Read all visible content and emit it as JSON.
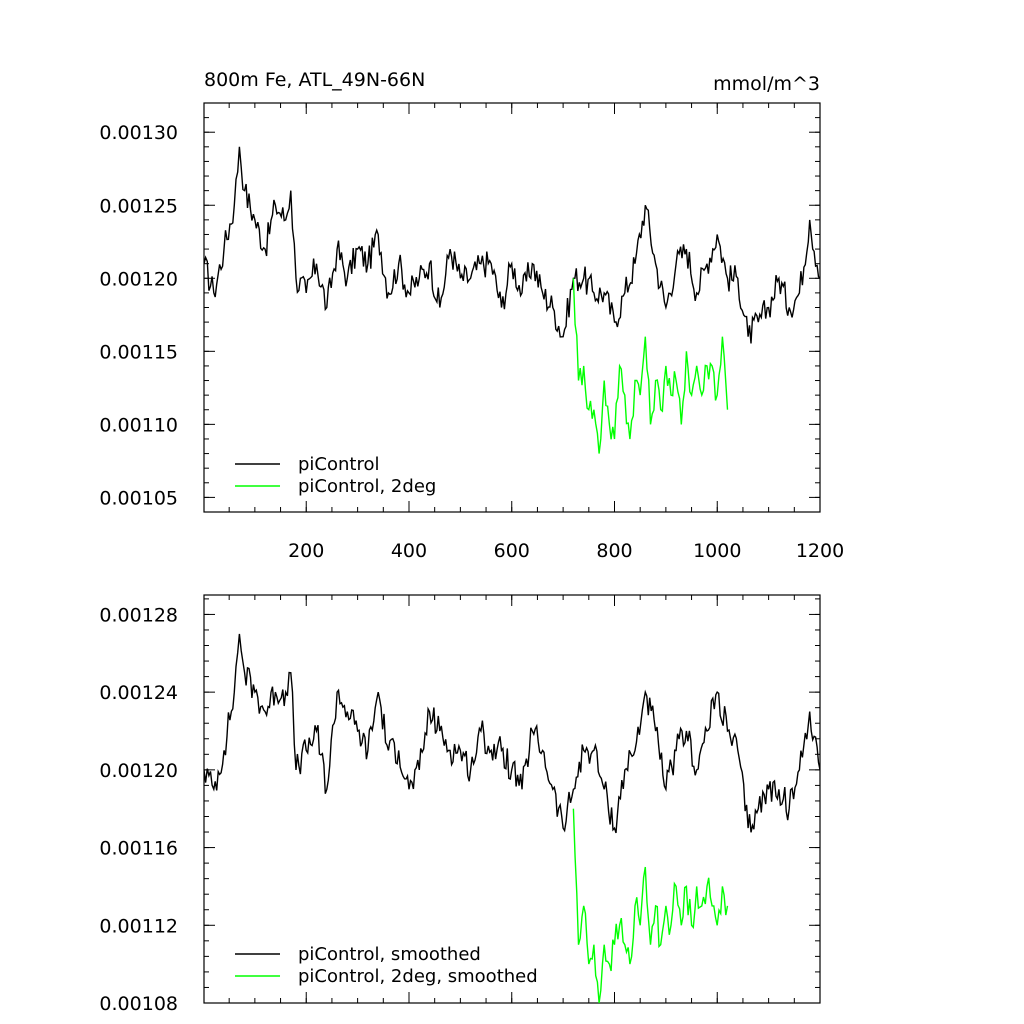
{
  "chart_data": [
    {
      "type": "line",
      "title": "800m Fe, ATL_49N-66N",
      "units": "mmol/m^3",
      "xlim": [
        1,
        1200
      ],
      "ylim": [
        0.00104,
        0.00132
      ],
      "xticks": [
        200,
        400,
        600,
        800,
        1000,
        1200
      ],
      "xtick_labels": [
        "200",
        "400",
        "600",
        "800",
        "1000",
        "1200"
      ],
      "yticks": [
        0.00105,
        0.0011,
        0.00115,
        0.0012,
        0.00125,
        0.0013
      ],
      "ytick_labels": [
        "0.00105",
        "0.00110",
        "0.00115",
        "0.00120",
        "0.00125",
        "0.00130"
      ],
      "legend_position": "bottom-left",
      "series": [
        {
          "name": "piControl",
          "color": "#000000",
          "x": [
            1,
            20,
            40,
            60,
            70,
            80,
            100,
            120,
            140,
            160,
            170,
            180,
            200,
            220,
            240,
            260,
            280,
            300,
            320,
            340,
            360,
            380,
            400,
            420,
            440,
            460,
            480,
            500,
            520,
            540,
            560,
            580,
            600,
            620,
            640,
            660,
            680,
            700,
            720,
            740,
            760,
            780,
            800,
            820,
            840,
            860,
            880,
            900,
            920,
            940,
            960,
            980,
            1000,
            1020,
            1040,
            1060,
            1080,
            1100,
            1120,
            1140,
            1160,
            1180,
            1200
          ],
          "y": [
            0.00121,
            0.00119,
            0.00122,
            0.00125,
            0.00129,
            0.00126,
            0.00124,
            0.00122,
            0.00125,
            0.00124,
            0.00126,
            0.0012,
            0.00119,
            0.00121,
            0.00118,
            0.00122,
            0.0012,
            0.00122,
            0.00121,
            0.00123,
            0.00119,
            0.00121,
            0.00119,
            0.0012,
            0.00121,
            0.00118,
            0.00122,
            0.0012,
            0.0012,
            0.00121,
            0.00121,
            0.00118,
            0.00121,
            0.00119,
            0.00121,
            0.00119,
            0.00118,
            0.00116,
            0.0012,
            0.0012,
            0.00119,
            0.00119,
            0.00117,
            0.00119,
            0.00121,
            0.00125,
            0.00121,
            0.00118,
            0.00121,
            0.00122,
            0.00119,
            0.00121,
            0.00123,
            0.0012,
            0.0012,
            0.00116,
            0.00117,
            0.00118,
            0.0012,
            0.00118,
            0.00119,
            0.00124,
            0.0012
          ]
        },
        {
          "name": "piControl, 2deg",
          "color": "#00ff00",
          "x": [
            720,
            730,
            740,
            750,
            760,
            770,
            780,
            790,
            800,
            810,
            820,
            830,
            840,
            850,
            860,
            870,
            880,
            890,
            900,
            910,
            920,
            930,
            940,
            950,
            960,
            970,
            980,
            990,
            1000,
            1010,
            1020
          ],
          "y": [
            0.0012,
            0.00113,
            0.00114,
            0.00111,
            0.00111,
            0.00108,
            0.00113,
            0.0011,
            0.00109,
            0.00114,
            0.00112,
            0.00109,
            0.00113,
            0.00112,
            0.00116,
            0.0011,
            0.00113,
            0.00111,
            0.00114,
            0.00112,
            0.00113,
            0.0011,
            0.00115,
            0.00112,
            0.00114,
            0.00112,
            0.00114,
            0.00114,
            0.00112,
            0.00116,
            0.00111
          ]
        }
      ]
    },
    {
      "type": "line",
      "xlim": [
        1,
        1200
      ],
      "ylim": [
        0.00108,
        0.00129
      ],
      "xticks": [
        200,
        400,
        600,
        800,
        1000,
        1200
      ],
      "yticks": [
        0.00108,
        0.00112,
        0.00116,
        0.0012,
        0.00124,
        0.00128
      ],
      "ytick_labels": [
        "0.00108",
        "0.00112",
        "0.00116",
        "0.00120",
        "0.00124",
        "0.00128"
      ],
      "legend_position": "bottom-left",
      "series": [
        {
          "name": "piControl, smoothed",
          "color": "#000000",
          "x": [
            1,
            20,
            40,
            60,
            70,
            80,
            100,
            120,
            140,
            160,
            170,
            180,
            200,
            220,
            240,
            260,
            280,
            300,
            320,
            340,
            360,
            380,
            400,
            420,
            440,
            460,
            480,
            500,
            520,
            540,
            560,
            580,
            600,
            620,
            640,
            660,
            680,
            700,
            720,
            740,
            760,
            780,
            800,
            820,
            840,
            860,
            880,
            900,
            920,
            940,
            960,
            980,
            1000,
            1020,
            1040,
            1060,
            1080,
            1100,
            1120,
            1140,
            1160,
            1180,
            1200
          ],
          "y": [
            0.0012,
            0.00119,
            0.00121,
            0.00124,
            0.00127,
            0.00125,
            0.00124,
            0.00123,
            0.00124,
            0.00124,
            0.00125,
            0.0012,
            0.00121,
            0.00122,
            0.00119,
            0.00124,
            0.00123,
            0.00122,
            0.00121,
            0.00124,
            0.00121,
            0.00121,
            0.00119,
            0.0012,
            0.00123,
            0.00122,
            0.00121,
            0.00121,
            0.0012,
            0.00122,
            0.00121,
            0.00121,
            0.0012,
            0.00119,
            0.00122,
            0.00121,
            0.00119,
            0.00117,
            0.00119,
            0.00121,
            0.00121,
            0.00119,
            0.00117,
            0.0012,
            0.00121,
            0.00124,
            0.00122,
            0.00119,
            0.00121,
            0.00122,
            0.0012,
            0.00122,
            0.00124,
            0.00122,
            0.00121,
            0.00117,
            0.00118,
            0.00119,
            0.00119,
            0.00118,
            0.0012,
            0.00123,
            0.0012
          ]
        },
        {
          "name": "piControl, 2deg, smoothed",
          "color": "#00ff00",
          "x": [
            720,
            730,
            740,
            750,
            760,
            770,
            780,
            790,
            800,
            810,
            820,
            830,
            840,
            850,
            860,
            870,
            880,
            890,
            900,
            910,
            920,
            930,
            940,
            950,
            960,
            970,
            980,
            990,
            1000,
            1010,
            1020
          ],
          "y": [
            0.00118,
            0.00111,
            0.00113,
            0.0011,
            0.00111,
            0.00108,
            0.00111,
            0.0011,
            0.00111,
            0.00112,
            0.00111,
            0.0011,
            0.00113,
            0.00112,
            0.00115,
            0.00111,
            0.00113,
            0.00111,
            0.00113,
            0.00112,
            0.00114,
            0.00112,
            0.00114,
            0.00112,
            0.00114,
            0.00113,
            0.00114,
            0.00113,
            0.00112,
            0.00114,
            0.00113
          ]
        }
      ]
    }
  ]
}
